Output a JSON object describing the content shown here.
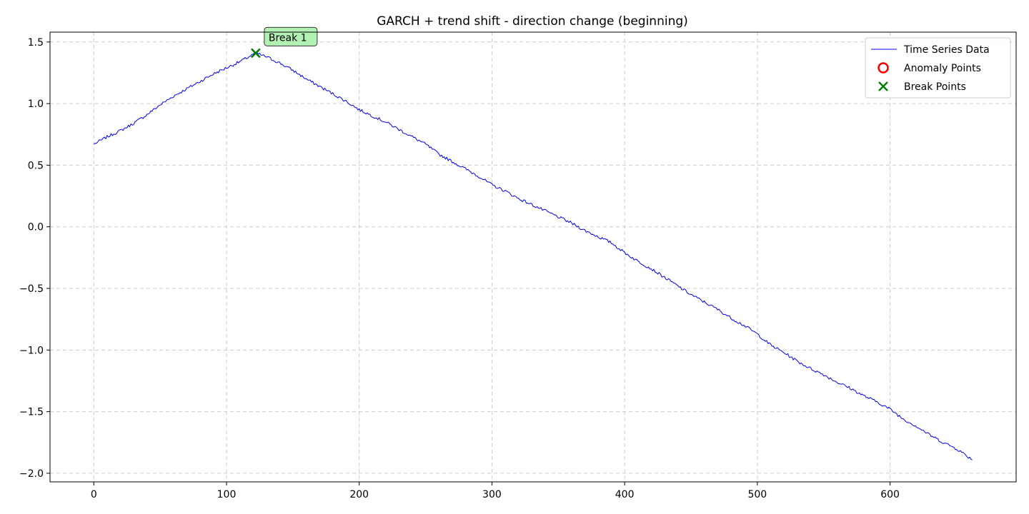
{
  "chart_data": {
    "type": "line",
    "title": "GARCH + trend shift - direction change (beginning)",
    "xlabel": "",
    "ylabel": "",
    "xlim": [
      -33,
      695
    ],
    "ylim": [
      -2.07,
      1.58
    ],
    "xticks": [
      0,
      100,
      200,
      300,
      400,
      500,
      600
    ],
    "yticks": [
      -2.0,
      -1.5,
      -1.0,
      -0.5,
      0.0,
      0.5,
      1.0,
      1.5
    ],
    "xtick_labels": [
      "0",
      "100",
      "200",
      "300",
      "400",
      "500",
      "600"
    ],
    "ytick_labels": [
      "−2.0",
      "−1.5",
      "−1.0",
      "−0.5",
      "0.0",
      "0.5",
      "1.0",
      "1.5"
    ],
    "grid": true,
    "legend_position": "top-right",
    "series": [
      {
        "name": "Time Series Data",
        "color": "#0000ff",
        "anchors": [
          [
            0,
            0.67
          ],
          [
            10,
            0.73
          ],
          [
            20,
            0.78
          ],
          [
            30,
            0.84
          ],
          [
            40,
            0.91
          ],
          [
            50,
            0.99
          ],
          [
            60,
            1.06
          ],
          [
            70,
            1.12
          ],
          [
            80,
            1.18
          ],
          [
            90,
            1.24
          ],
          [
            100,
            1.29
          ],
          [
            110,
            1.34
          ],
          [
            122,
            1.41
          ],
          [
            130,
            1.38
          ],
          [
            140,
            1.33
          ],
          [
            150,
            1.27
          ],
          [
            160,
            1.2
          ],
          [
            170,
            1.14
          ],
          [
            180,
            1.08
          ],
          [
            190,
            1.02
          ],
          [
            200,
            0.95
          ],
          [
            210,
            0.9
          ],
          [
            220,
            0.85
          ],
          [
            230,
            0.79
          ],
          [
            240,
            0.73
          ],
          [
            250,
            0.67
          ],
          [
            260,
            0.59
          ],
          [
            270,
            0.53
          ],
          [
            280,
            0.47
          ],
          [
            290,
            0.41
          ],
          [
            300,
            0.34
          ],
          [
            310,
            0.29
          ],
          [
            320,
            0.23
          ],
          [
            330,
            0.18
          ],
          [
            340,
            0.13
          ],
          [
            350,
            0.08
          ],
          [
            360,
            0.03
          ],
          [
            370,
            -0.03
          ],
          [
            380,
            -0.08
          ],
          [
            390,
            -0.13
          ],
          [
            400,
            -0.21
          ],
          [
            410,
            -0.28
          ],
          [
            420,
            -0.34
          ],
          [
            430,
            -0.41
          ],
          [
            440,
            -0.48
          ],
          [
            450,
            -0.55
          ],
          [
            460,
            -0.61
          ],
          [
            470,
            -0.67
          ],
          [
            480,
            -0.74
          ],
          [
            490,
            -0.8
          ],
          [
            500,
            -0.87
          ],
          [
            510,
            -0.96
          ],
          [
            520,
            -1.02
          ],
          [
            530,
            -1.09
          ],
          [
            540,
            -1.15
          ],
          [
            550,
            -1.2
          ],
          [
            560,
            -1.26
          ],
          [
            570,
            -1.31
          ],
          [
            580,
            -1.37
          ],
          [
            590,
            -1.42
          ],
          [
            600,
            -1.48
          ],
          [
            610,
            -1.56
          ],
          [
            620,
            -1.62
          ],
          [
            630,
            -1.69
          ],
          [
            640,
            -1.75
          ],
          [
            650,
            -1.8
          ],
          [
            662,
            -1.89
          ]
        ],
        "n_points": 663,
        "noise_amplitude": 0.012
      },
      {
        "name": "Anomaly Points",
        "color": "#ff0000",
        "marker": "circle-open",
        "points": []
      },
      {
        "name": "Break Points",
        "color": "#008000",
        "marker": "x",
        "points": [
          [
            122,
            1.41
          ]
        ]
      }
    ],
    "annotations": [
      {
        "text": "Break 1",
        "x": 122,
        "y": 1.41,
        "box_color": "#b3f0b3"
      }
    ]
  }
}
